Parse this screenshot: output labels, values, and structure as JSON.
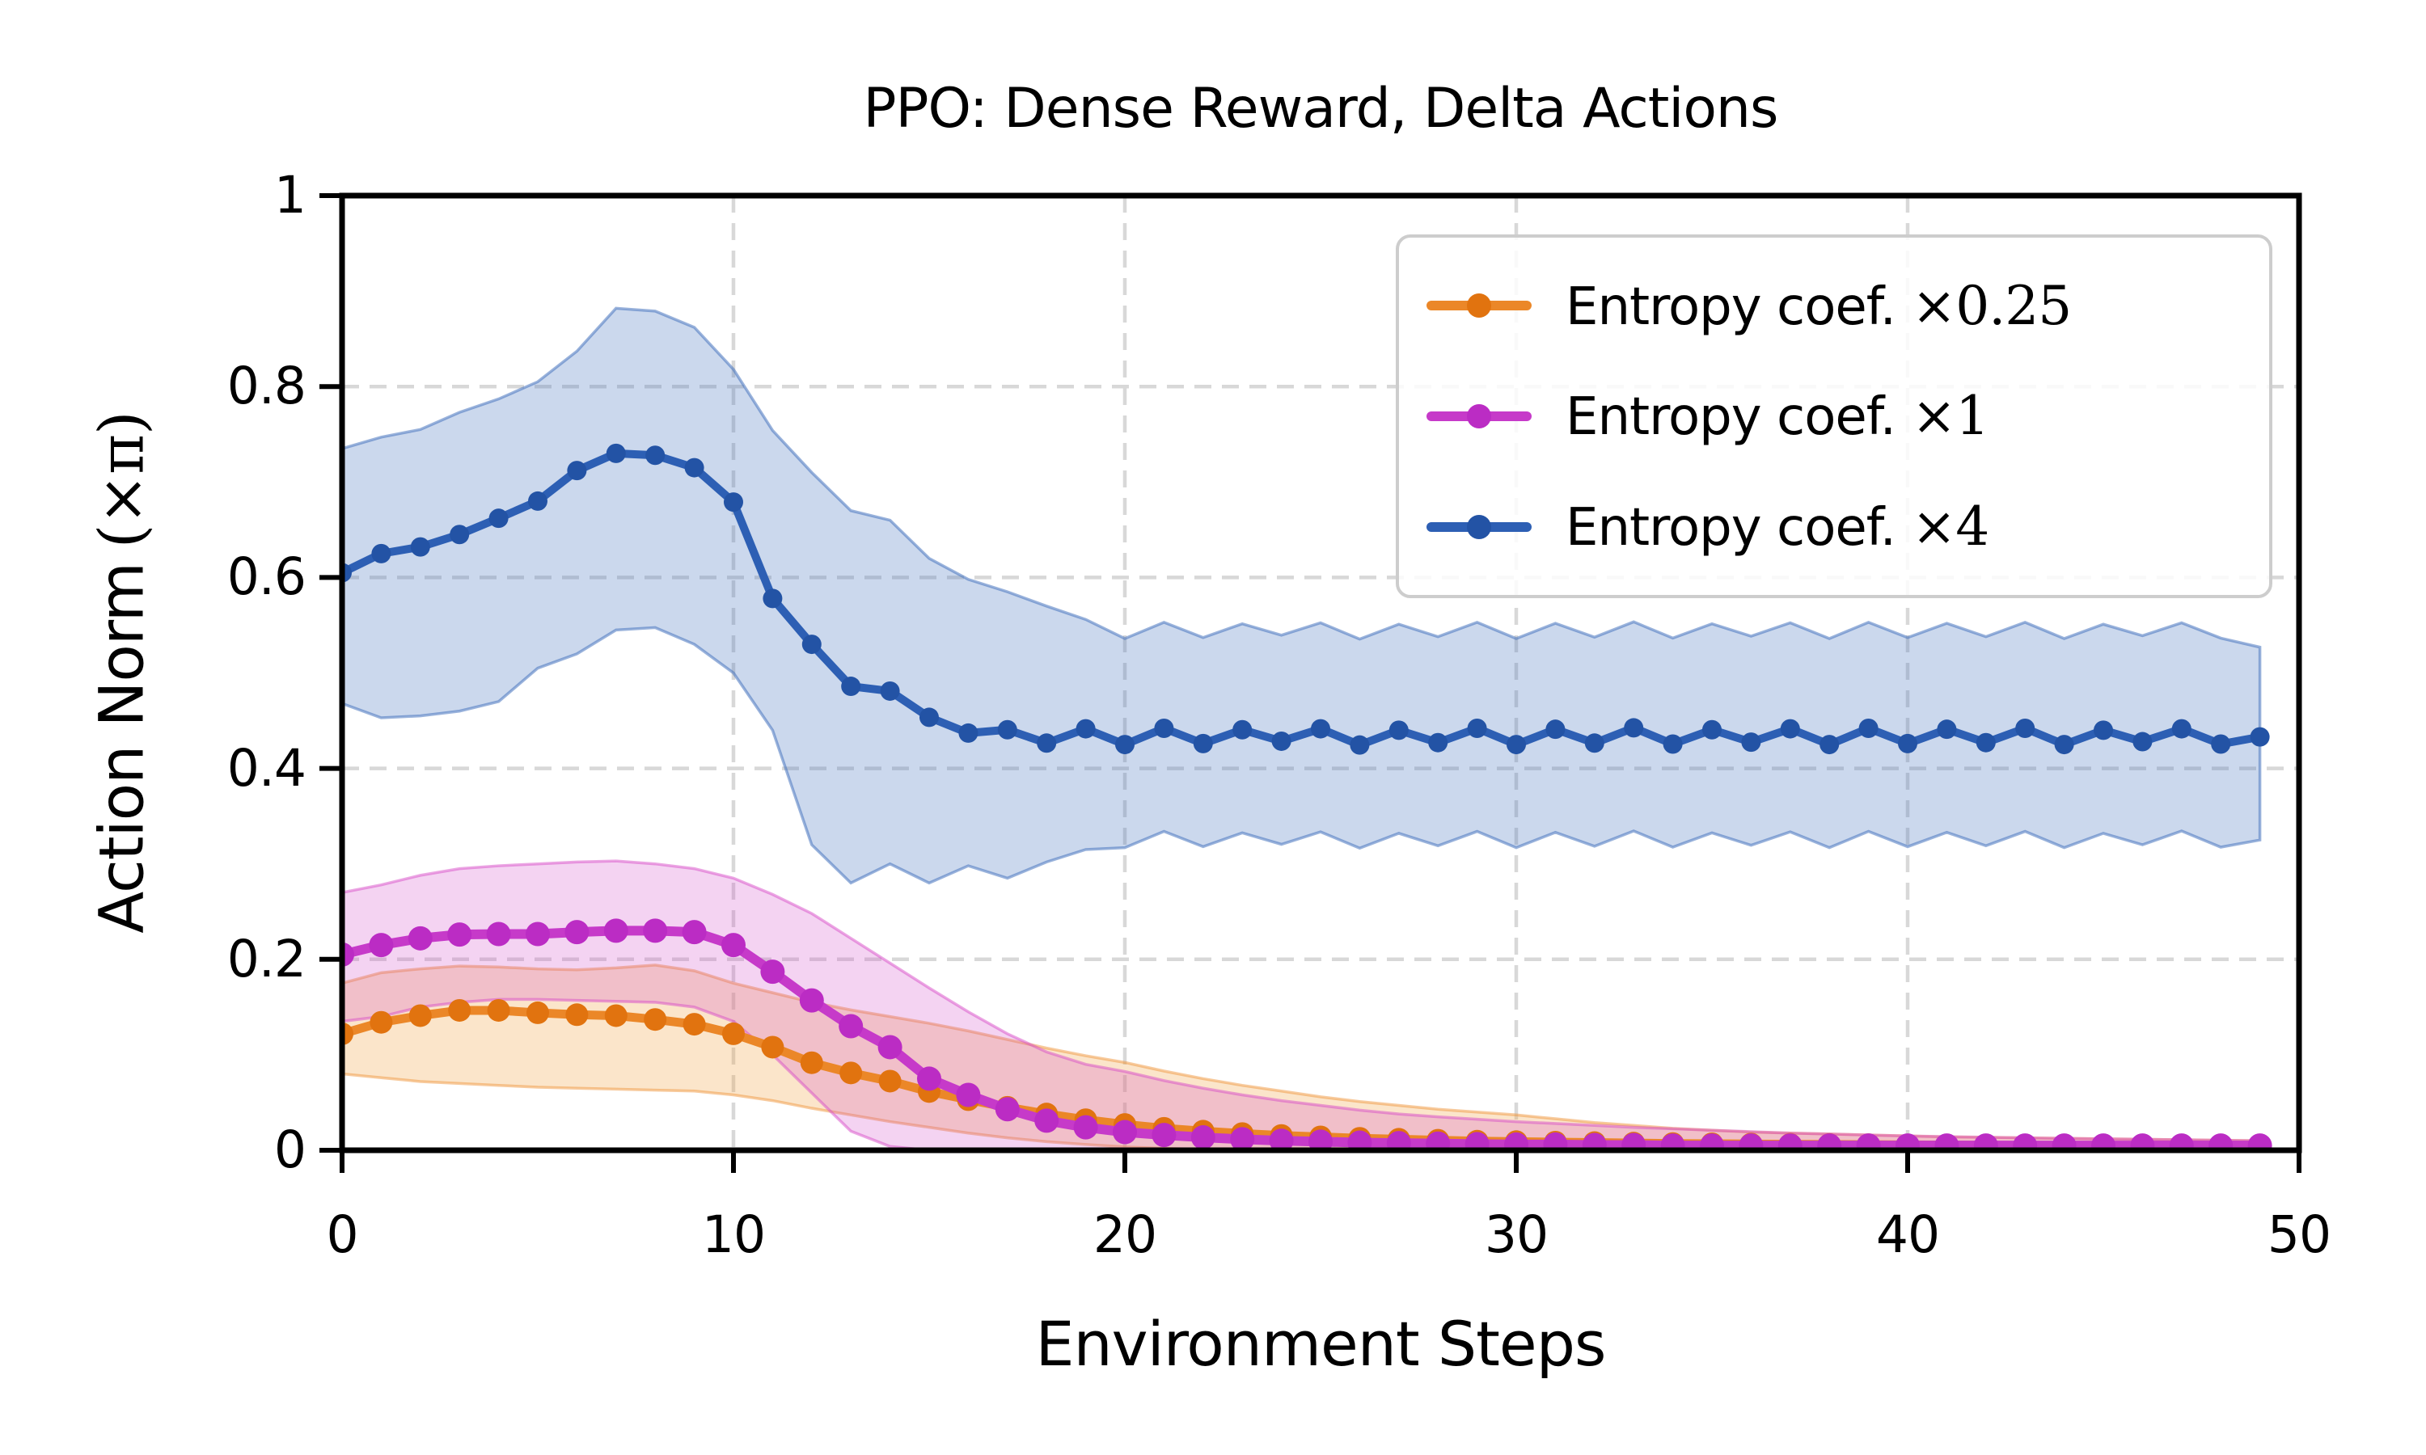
{
  "chart_data": {
    "type": "line",
    "title": "PPO: Dense Reward, Delta Actions",
    "xlabel": "Environment Steps",
    "ylabel": {
      "text": "Action Norm",
      "math": "(×π)"
    },
    "xlim": [
      0,
      50
    ],
    "ylim": [
      0,
      1
    ],
    "xticks": {
      "values": [
        0,
        10,
        20,
        30,
        40,
        50
      ],
      "labels": [
        "0",
        "10",
        "20",
        "30",
        "40",
        "50"
      ]
    },
    "yticks": {
      "values": [
        0,
        0.2,
        0.4,
        0.6,
        0.8,
        1
      ],
      "labels": [
        "0",
        "0.2",
        "0.4",
        "0.6",
        "0.8",
        "1"
      ]
    },
    "grid": {
      "show": true,
      "color": "#d8d8d8",
      "style": "dashed"
    },
    "legend": {
      "position": "upper right",
      "entries": [
        {
          "prefix": "Entropy coef.",
          "math": "×0.25"
        },
        {
          "prefix": "Entropy coef.",
          "math": "×1"
        },
        {
          "prefix": "Entropy coef.",
          "math": "×4"
        }
      ]
    },
    "x": [
      0,
      1,
      2,
      3,
      4,
      5,
      6,
      7,
      8,
      9,
      10,
      11,
      12,
      13,
      14,
      15,
      16,
      17,
      18,
      19,
      20,
      21,
      22,
      23,
      24,
      25,
      26,
      27,
      28,
      29,
      30,
      31,
      32,
      33,
      34,
      35,
      36,
      37,
      38,
      39,
      40,
      41,
      42,
      43,
      44,
      45,
      46,
      47,
      48,
      49
    ],
    "series": [
      {
        "id": "entropy-coef-x0.25",
        "name": "Entropy coef. ×0.25",
        "color": "#eb8728",
        "marker_color": "#e1730f",
        "band_fill": "rgba(240,160,65,0.28)",
        "band_edge": "rgba(240,150,60,0.5)",
        "line_width": 11,
        "marker_radius": 14,
        "y": [
          0.122,
          0.134,
          0.141,
          0.1465,
          0.1465,
          0.144,
          0.142,
          0.141,
          0.137,
          0.132,
          0.122,
          0.108,
          0.0917,
          0.081,
          0.0724,
          0.0615,
          0.053,
          0.045,
          0.038,
          0.032,
          0.027,
          0.023,
          0.02,
          0.0175,
          0.0155,
          0.014,
          0.0125,
          0.0115,
          0.0105,
          0.0095,
          0.009,
          0.0085,
          0.008,
          0.0075,
          0.007,
          0.0068,
          0.0065,
          0.0062,
          0.006,
          0.0058,
          0.0056,
          0.0054,
          0.0052,
          0.005,
          0.005,
          0.0048,
          0.0046,
          0.0045,
          0.0044,
          0.0043
        ],
        "band_upper": [
          0.175,
          0.186,
          0.19,
          0.193,
          0.192,
          0.19,
          0.189,
          0.191,
          0.194,
          0.188,
          0.175,
          0.165,
          0.155,
          0.147,
          0.14,
          0.133,
          0.125,
          0.116,
          0.107,
          0.099,
          0.092,
          0.083,
          0.075,
          0.068,
          0.062,
          0.056,
          0.051,
          0.047,
          0.043,
          0.04,
          0.037,
          0.033,
          0.029,
          0.026,
          0.023,
          0.021,
          0.019,
          0.018,
          0.017,
          0.016,
          0.015,
          0.014,
          0.0135,
          0.013,
          0.0125,
          0.012,
          0.0115,
          0.011,
          0.0105,
          0.01
        ],
        "band_lower": [
          0.08,
          0.076,
          0.072,
          0.07,
          0.068,
          0.066,
          0.065,
          0.064,
          0.063,
          0.062,
          0.058,
          0.052,
          0.044,
          0.037,
          0.03,
          0.024,
          0.018,
          0.013,
          0.009,
          0.006,
          0.0035,
          0.002,
          0.001,
          0,
          0,
          0,
          0,
          0,
          0,
          0,
          0,
          0,
          0,
          0,
          0,
          0,
          0,
          0,
          0,
          0,
          0,
          0,
          0,
          0,
          0,
          0,
          0,
          0,
          0,
          0
        ]
      },
      {
        "id": "entropy-coef-x1",
        "name": "Entropy coef. ×1",
        "color": "#c63ac9",
        "marker_color": "#bb2cc4",
        "band_fill": "rgba(210,70,200,0.24)",
        "band_edge": "rgba(215,75,200,0.5)",
        "line_width": 12,
        "marker_radius": 15,
        "y": [
          0.205,
          0.215,
          0.222,
          0.226,
          0.2265,
          0.2265,
          0.2285,
          0.23,
          0.23,
          0.2285,
          0.215,
          0.187,
          0.157,
          0.13,
          0.108,
          0.075,
          0.058,
          0.043,
          0.031,
          0.024,
          0.019,
          0.016,
          0.0135,
          0.0115,
          0.01,
          0.009,
          0.008,
          0.0075,
          0.007,
          0.0065,
          0.006,
          0.006,
          0.0055,
          0.0055,
          0.005,
          0.005,
          0.005,
          0.005,
          0.005,
          0.005,
          0.005,
          0.005,
          0.005,
          0.005,
          0.005,
          0.005,
          0.005,
          0.005,
          0.005,
          0.005
        ],
        "band_upper": [
          0.27,
          0.278,
          0.288,
          0.295,
          0.298,
          0.3,
          0.302,
          0.303,
          0.3,
          0.295,
          0.285,
          0.268,
          0.248,
          0.222,
          0.196,
          0.17,
          0.145,
          0.122,
          0.103,
          0.09,
          0.0825,
          0.073,
          0.065,
          0.058,
          0.052,
          0.047,
          0.042,
          0.038,
          0.035,
          0.0325,
          0.03,
          0.028,
          0.026,
          0.024,
          0.0225,
          0.021,
          0.0195,
          0.018,
          0.017,
          0.016,
          0.015,
          0.0143,
          0.0137,
          0.013,
          0.0125,
          0.012,
          0.0115,
          0.011,
          0.0105,
          0.01
        ],
        "band_lower": [
          0.135,
          0.14,
          0.15,
          0.155,
          0.158,
          0.158,
          0.157,
          0.156,
          0.155,
          0.15,
          0.135,
          0.1,
          0.06,
          0.02,
          0.004,
          0,
          0,
          0,
          0,
          0,
          0,
          0,
          0,
          0,
          0,
          0,
          0,
          0,
          0,
          0,
          0,
          0,
          0,
          0,
          0,
          0,
          0,
          0,
          0,
          0,
          0,
          0,
          0,
          0,
          0,
          0,
          0,
          0,
          0,
          0
        ]
      },
      {
        "id": "entropy-coef-x4",
        "name": "Entropy coef. ×4",
        "color": "#2d5fb4",
        "marker_color": "#2353a5",
        "band_fill": "rgba(70,115,190,0.28)",
        "band_edge": "rgba(70,115,190,0.55)",
        "line_width": 10,
        "marker_radius": 12,
        "y": [
          0.605,
          0.625,
          0.632,
          0.645,
          0.662,
          0.68,
          0.712,
          0.73,
          0.728,
          0.715,
          0.679,
          0.578,
          0.53,
          0.486,
          0.481,
          0.4535,
          0.437,
          0.4405,
          0.4265,
          0.4415,
          0.425,
          0.442,
          0.426,
          0.4405,
          0.4285,
          0.4415,
          0.4245,
          0.44,
          0.427,
          0.442,
          0.425,
          0.441,
          0.4265,
          0.4425,
          0.4255,
          0.4405,
          0.4275,
          0.4415,
          0.425,
          0.442,
          0.426,
          0.441,
          0.427,
          0.442,
          0.425,
          0.44,
          0.428,
          0.4415,
          0.4255,
          0.433
        ],
        "band_upper": [
          0.735,
          0.747,
          0.755,
          0.773,
          0.787,
          0.805,
          0.837,
          0.882,
          0.879,
          0.862,
          0.818,
          0.754,
          0.71,
          0.67,
          0.66,
          0.62,
          0.598,
          0.585,
          0.57,
          0.556,
          0.536,
          0.553,
          0.537,
          0.5515,
          0.5395,
          0.5525,
          0.5355,
          0.551,
          0.538,
          0.553,
          0.536,
          0.552,
          0.5375,
          0.5535,
          0.5365,
          0.5515,
          0.5385,
          0.5525,
          0.536,
          0.553,
          0.537,
          0.552,
          0.538,
          0.553,
          0.536,
          0.551,
          0.539,
          0.5525,
          0.5365,
          0.527
        ],
        "band_lower": [
          0.468,
          0.453,
          0.455,
          0.46,
          0.47,
          0.505,
          0.52,
          0.545,
          0.5475,
          0.53,
          0.5,
          0.44,
          0.32,
          0.28,
          0.3,
          0.28,
          0.298,
          0.285,
          0.302,
          0.315,
          0.317,
          0.334,
          0.318,
          0.3325,
          0.3205,
          0.3335,
          0.3165,
          0.332,
          0.319,
          0.334,
          0.317,
          0.333,
          0.3185,
          0.3345,
          0.3175,
          0.3325,
          0.3195,
          0.3335,
          0.317,
          0.334,
          0.318,
          0.333,
          0.319,
          0.334,
          0.317,
          0.332,
          0.32,
          0.3345,
          0.3175,
          0.325
        ]
      }
    ]
  }
}
